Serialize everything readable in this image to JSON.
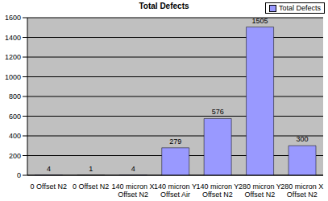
{
  "chart_data": {
    "type": "bar",
    "title": "Total Defects",
    "categories": [
      "0 Offset N2",
      "0 Offset N2",
      "140 micron X Offset N2",
      "140 micron Y Offset Air",
      "140 micron Y Offset N2",
      "280 micron Y Offset N2",
      "280 micron X Offset N2"
    ],
    "series": [
      {
        "name": "Total Defects",
        "color": "#9999ff",
        "values": [
          4,
          1,
          4,
          279,
          576,
          1505,
          300
        ]
      }
    ],
    "ylim": [
      0,
      1600
    ],
    "yticks": [
      0,
      200,
      400,
      600,
      800,
      1000,
      1200,
      1400,
      1600
    ],
    "grid": true,
    "legend": "top right",
    "data_labels": true
  }
}
